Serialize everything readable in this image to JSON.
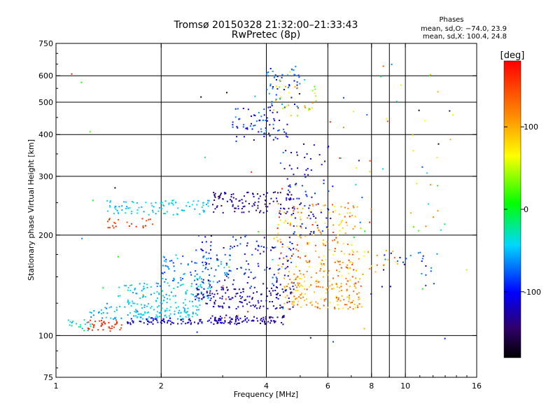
{
  "chart_data": {
    "type": "scatter",
    "title": "Tromsø 20150328 21:32:00–21:33:43",
    "subtitle": "RwPretec (8p)",
    "xlabel": "Frequency [MHz]",
    "ylabel": "Stationary phase Virtual Height [km]",
    "xscale": "log",
    "yscale": "log",
    "xlim": [
      1,
      16
    ],
    "ylim": [
      75,
      750
    ],
    "xticks": [
      1,
      2,
      4,
      6,
      8,
      10,
      16
    ],
    "xtick_labels": [
      "1",
      "2",
      "4",
      "6",
      "8",
      "10",
      "16"
    ],
    "yticks": [
      75,
      100,
      200,
      300,
      400,
      500,
      600,
      750
    ],
    "ytick_labels": [
      "75",
      "100",
      "200",
      "300",
      "400",
      "500",
      "600",
      "750"
    ],
    "grid": true,
    "stats": {
      "heading": "Phases",
      "line_o": "mean, sd,O: −74.0, 23.9",
      "line_x": "mean, sd,X: 100.4, 24.8"
    },
    "colorbar": {
      "label": "[deg]",
      "range": [
        -180,
        180
      ],
      "ticks": [
        -100,
        0,
        100
      ],
      "tick_labels": [
        "-100",
        "0",
        "100"
      ]
    },
    "clusters": [
      {
        "f": [
          1.08,
          1.28
        ],
        "h": [
          103,
          112
        ],
        "phase": [
          -10,
          -60
        ],
        "n": 18
      },
      {
        "f": [
          1.22,
          1.55
        ],
        "h": [
          103,
          112
        ],
        "phase": [
          150,
          165
        ],
        "n": 40
      },
      {
        "f": [
          1.25,
          1.75
        ],
        "h": [
          112,
          125
        ],
        "phase": [
          -40,
          -70
        ],
        "n": 40
      },
      {
        "f": [
          1.6,
          3.0
        ],
        "h": [
          108,
          113
        ],
        "phase": [
          -90,
          -130
        ],
        "n": 90
      },
      {
        "f": [
          1.6,
          2.6
        ],
        "h": [
          112,
          128
        ],
        "phase": [
          -30,
          -60
        ],
        "n": 110
      },
      {
        "f": [
          1.5,
          2.8
        ],
        "h": [
          128,
          145
        ],
        "phase": [
          -20,
          -70
        ],
        "n": 90
      },
      {
        "f": [
          2.0,
          3.2
        ],
        "h": [
          145,
          175
        ],
        "phase": [
          -40,
          -90
        ],
        "n": 80
      },
      {
        "f": [
          1.4,
          2.8
        ],
        "h": [
          230,
          255
        ],
        "phase": [
          -30,
          -60
        ],
        "n": 90
      },
      {
        "f": [
          1.4,
          1.9
        ],
        "h": [
          210,
          225
        ],
        "phase": [
          140,
          170
        ],
        "n": 25
      },
      {
        "f": [
          2.8,
          4.5
        ],
        "h": [
          108,
          115
        ],
        "phase": [
          -110,
          -140
        ],
        "n": 90
      },
      {
        "f": [
          2.5,
          4.8
        ],
        "h": [
          120,
          140
        ],
        "phase": [
          -100,
          -140
        ],
        "n": 150
      },
      {
        "f": [
          2.5,
          4.8
        ],
        "h": [
          140,
          200
        ],
        "phase": [
          -70,
          -130
        ],
        "n": 130
      },
      {
        "f": [
          2.8,
          4.8
        ],
        "h": [
          230,
          270
        ],
        "phase": [
          -110,
          -150
        ],
        "n": 110
      },
      {
        "f": [
          3.2,
          4.6
        ],
        "h": [
          380,
          480
        ],
        "phase": [
          -60,
          -130
        ],
        "n": 70
      },
      {
        "f": [
          4.0,
          5.0
        ],
        "h": [
          480,
          640
        ],
        "phase": [
          -50,
          -120
        ],
        "n": 55
      },
      {
        "f": [
          4.2,
          5.6
        ],
        "h": [
          450,
          640
        ],
        "phase": [
          20,
          120
        ],
        "n": 30
      },
      {
        "f": [
          4.2,
          7.2
        ],
        "h": [
          150,
          250
        ],
        "phase": [
          60,
          160
        ],
        "n": 170
      },
      {
        "f": [
          4.5,
          7.5
        ],
        "h": [
          120,
          150
        ],
        "phase": [
          70,
          150
        ],
        "n": 170
      },
      {
        "f": [
          4.5,
          6.2
        ],
        "h": [
          200,
          380
        ],
        "phase": [
          -80,
          -140
        ],
        "n": 80
      },
      {
        "f": [
          5.5,
          9.5
        ],
        "h": [
          150,
          180
        ],
        "phase": [
          60,
          150
        ],
        "n": 40
      },
      {
        "f": [
          8.5,
          12.5
        ],
        "h": [
          140,
          180
        ],
        "phase": [
          -60,
          -130
        ],
        "n": 25
      },
      {
        "f": [
          6.0,
          13.0
        ],
        "h": [
          200,
          650
        ],
        "phase": [
          -100,
          170
        ],
        "n": 40
      },
      {
        "f": [
          1.1,
          15.0
        ],
        "h": [
          95,
          640
        ],
        "phase": [
          -180,
          180
        ],
        "n": 60
      }
    ]
  }
}
